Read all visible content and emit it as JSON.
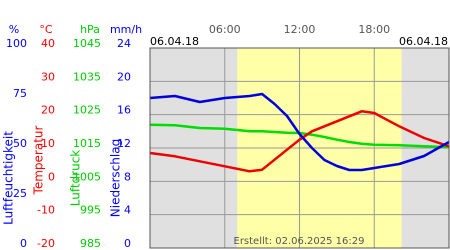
{
  "chart_data": {
    "type": "line",
    "date_left": "06.04.18",
    "date_right": "06.04.18",
    "footer": "Erstellt: 02.06.2025 16:29",
    "xlim": [
      0,
      24
    ],
    "xticks": [
      {
        "value": 6,
        "label": "06:00"
      },
      {
        "value": 12,
        "label": "12:00"
      },
      {
        "value": 18,
        "label": "18:00"
      }
    ],
    "daylight": [
      7,
      20.2
    ],
    "grid": true,
    "axes": [
      {
        "unit": "%",
        "title": "Luftfeuchtigkeit",
        "color": "#0000ff",
        "ylim": [
          0,
          100
        ],
        "yticks": [
          0,
          25,
          50,
          75,
          100
        ]
      },
      {
        "unit": "°C",
        "title": "Temperatur",
        "color": "#ff0000",
        "ylim": [
          -20,
          40
        ],
        "yticks": [
          -20,
          -10,
          0,
          10,
          20,
          30,
          40
        ]
      },
      {
        "unit": "hPa",
        "title": "Luftdruck",
        "color": "#00cc00",
        "ylim": [
          985,
          1045
        ],
        "yticks": [
          985,
          995,
          1005,
          1015,
          1025,
          1035,
          1045
        ]
      },
      {
        "unit": "mm/h",
        "title": "Niederschlag",
        "color": "#0000ff",
        "ylim": [
          0,
          24
        ],
        "yticks": [
          0,
          4,
          8,
          12,
          16,
          20,
          24
        ]
      }
    ],
    "x": [
      0,
      2,
      4,
      6,
      8,
      9,
      10,
      11,
      12,
      13,
      14,
      15,
      16,
      17,
      18,
      19,
      20,
      22,
      24
    ],
    "series": [
      {
        "color": "#00dd00",
        "axis": 2,
        "values": [
          1022,
          1021.8,
          1021,
          1020.8,
          1020,
          1020,
          1019.8,
          1019.6,
          1019.5,
          1019,
          1018.3,
          1017.5,
          1016.8,
          1016.3,
          1016,
          1015.9,
          1015.8,
          1015.5,
          1015.2
        ]
      },
      {
        "color": "#ee0000",
        "axis": 1,
        "values": [
          8.5,
          7.5,
          6,
          4.5,
          3,
          3.5,
          6.5,
          9.5,
          12.5,
          15,
          16.5,
          18,
          19.5,
          21,
          20.5,
          18.5,
          16.5,
          13,
          10.5
        ]
      },
      {
        "color": "#0000dd",
        "axis": 0,
        "values": [
          75,
          76,
          73,
          75,
          76,
          77,
          72,
          66,
          57,
          50,
          44,
          41,
          39,
          39,
          40,
          41,
          42,
          46,
          53
        ]
      }
    ]
  }
}
